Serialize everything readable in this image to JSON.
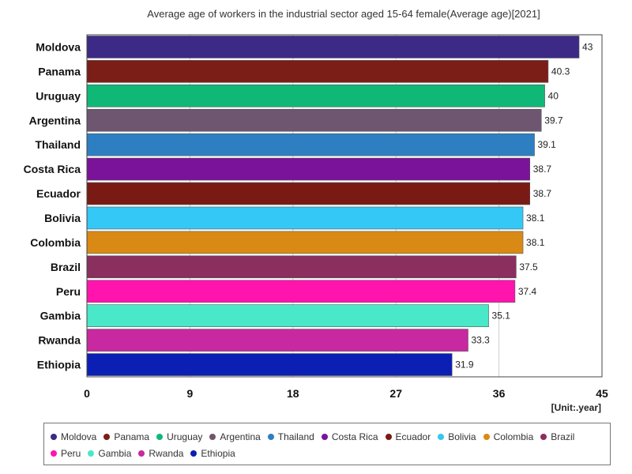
{
  "chart_data": {
    "type": "bar",
    "orientation": "horizontal",
    "title": "Average age of workers in the industrial sector aged 15-64 female(Average age)[2021]",
    "unit_label": "[Unit:.year]",
    "categories": [
      "Moldova",
      "Panama",
      "Uruguay",
      "Argentina",
      "Thailand",
      "Costa Rica",
      "Ecuador",
      "Bolivia",
      "Colombia",
      "Brazil",
      "Peru",
      "Gambia",
      "Rwanda",
      "Ethiopia"
    ],
    "values": [
      43,
      40.3,
      40,
      39.7,
      39.1,
      38.7,
      38.7,
      38.1,
      38.1,
      37.5,
      37.4,
      35.1,
      33.3,
      31.9
    ],
    "value_labels": [
      "43",
      "40.3",
      "40",
      "39.7",
      "39.1",
      "38.7",
      "38.7",
      "38.1",
      "38.1",
      "37.5",
      "37.4",
      "35.1",
      "33.3",
      "31.9"
    ],
    "colors": [
      "#3d2a86",
      "#7a1e17",
      "#10b878",
      "#6e5670",
      "#2e7fc2",
      "#7b139a",
      "#7a1a14",
      "#33c8f5",
      "#d98a14",
      "#8a2f5e",
      "#ff14ae",
      "#48e8c8",
      "#c828a0",
      "#0b1fb5"
    ],
    "xlim": [
      0,
      45
    ],
    "xticks": [
      0,
      9,
      18,
      27,
      36,
      45
    ],
    "xtick_labels": [
      "0",
      "9",
      "18",
      "27",
      "36",
      "45"
    ],
    "grid": true,
    "legend_position": "bottom"
  }
}
